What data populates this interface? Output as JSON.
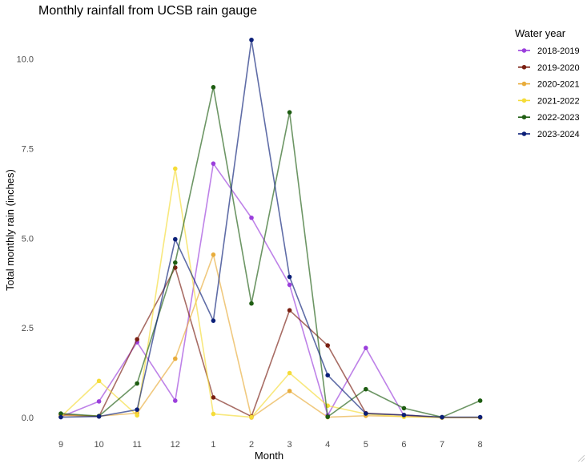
{
  "chart_data": {
    "type": "line",
    "title": "Monthly rainfall from UCSB rain gauge",
    "xlabel": "Month",
    "ylabel": "Total monthly rain (inches)",
    "x": [
      "9",
      "10",
      "11",
      "12",
      "1",
      "2",
      "3",
      "4",
      "5",
      "6",
      "7",
      "8"
    ],
    "yticks": [
      "0.0",
      "2.5",
      "5.0",
      "7.5",
      "10.0"
    ],
    "ylim": [
      -0.5,
      11
    ],
    "grid": false,
    "legend": {
      "title": "Water year",
      "position": "right"
    },
    "series": [
      {
        "name": "2018-2019",
        "color": "#9b3fdc",
        "values": [
          0.02,
          0.45,
          2.1,
          0.47,
          7.08,
          5.57,
          3.7,
          0.06,
          1.94,
          0.05,
          0.0,
          0.0
        ]
      },
      {
        "name": "2019-2020",
        "color": "#7a1f12",
        "values": [
          0.08,
          0.03,
          2.18,
          4.18,
          0.56,
          0.03,
          2.99,
          2.01,
          0.12,
          0.07,
          0.0,
          0.0
        ]
      },
      {
        "name": "2020-2021",
        "color": "#e8ac3b",
        "values": [
          0.06,
          0.04,
          0.12,
          1.64,
          4.54,
          0.0,
          0.74,
          0.01,
          0.05,
          0.03,
          0.0,
          0.0
        ]
      },
      {
        "name": "2021-2022",
        "color": "#f5dc38",
        "values": [
          0.02,
          1.02,
          0.06,
          6.94,
          0.1,
          0.01,
          1.24,
          0.33,
          0.1,
          0.02,
          0.0,
          0.0
        ]
      },
      {
        "name": "2022-2023",
        "color": "#1e5d12",
        "values": [
          0.11,
          0.04,
          0.95,
          4.32,
          9.21,
          3.18,
          8.51,
          0.02,
          0.79,
          0.26,
          0.01,
          0.47
        ]
      },
      {
        "name": "2023-2024",
        "color": "#0b1f78",
        "values": [
          0.01,
          0.03,
          0.22,
          4.97,
          2.7,
          10.53,
          3.92,
          1.18,
          0.11,
          0.07,
          0.01,
          0.01
        ]
      }
    ]
  }
}
